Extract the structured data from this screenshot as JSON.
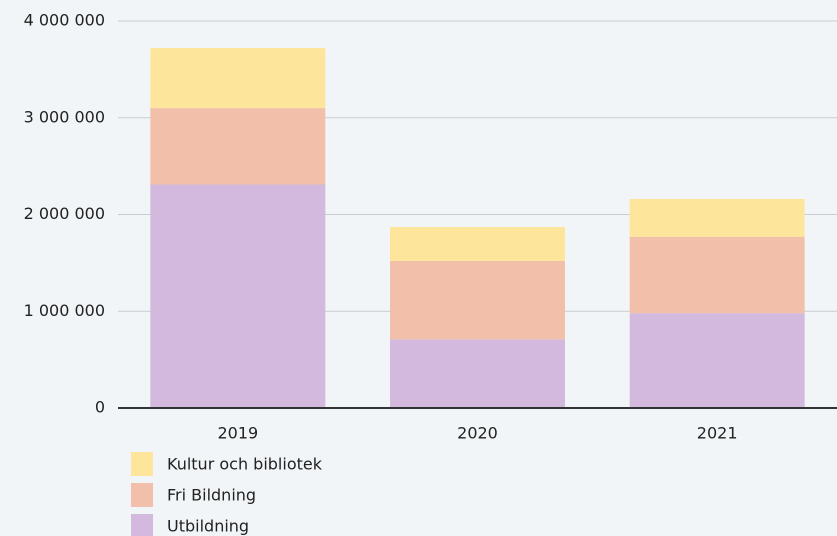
{
  "chart_data": {
    "type": "stacked_bar",
    "categories": [
      "2019",
      "2020",
      "2021"
    ],
    "series": [
      {
        "name": "Utbildning",
        "color": "#d2b9dd",
        "values": [
          2310000,
          710000,
          980000
        ]
      },
      {
        "name": "Fri Bildning",
        "color": "#f2c0aa",
        "values": [
          790000,
          810000,
          790000
        ]
      },
      {
        "name": "Kultur och bibliotek",
        "color": "#fde69b",
        "values": [
          620000,
          350000,
          390000
        ]
      }
    ],
    "ylim": [
      0,
      4000000
    ],
    "yticks": [
      0,
      {
        "value": 1000000,
        "label": "1 000 000"
      },
      {
        "value": 2000000,
        "label": "2 000 000"
      },
      {
        "value": 3000000,
        "label": "3 000 000"
      },
      {
        "value": 4000000,
        "label": "4 000 000"
      }
    ],
    "grid": true,
    "legend": "bottom-left"
  }
}
